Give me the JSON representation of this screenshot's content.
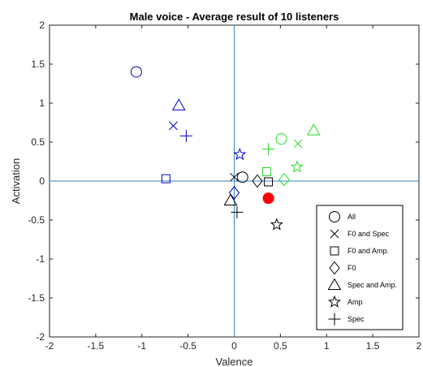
{
  "chart_data": {
    "type": "scatter",
    "title": "Male voice - Average result of 10 listeners",
    "xlabel": "Valence",
    "ylabel": "Activation",
    "xlim": [
      -2,
      2
    ],
    "ylim": [
      -2,
      2
    ],
    "xticks": [
      "-2",
      "-1.5",
      "-1",
      "-0.5",
      "0",
      "0.5",
      "1",
      "1.5",
      "2"
    ],
    "yticks": [
      "-2",
      "-1.5",
      "-1",
      "-0.5",
      "0",
      "0.5",
      "1",
      "1.5",
      "2"
    ],
    "grid": false,
    "reference_lines": {
      "x": 0,
      "y": 0,
      "color": "#3a87c0"
    },
    "legend_position": "bottom-right",
    "legend": [
      {
        "marker": "circle",
        "label": "All"
      },
      {
        "marker": "x",
        "label": "F0 and Spec"
      },
      {
        "marker": "square",
        "label": "F0 and Amp."
      },
      {
        "marker": "diamond",
        "label": "F0"
      },
      {
        "marker": "triangle",
        "label": "Spec and Amp."
      },
      {
        "marker": "star",
        "label": "Amp"
      },
      {
        "marker": "plus",
        "label": "Spec"
      }
    ],
    "series": [
      {
        "color": "#0000cc",
        "points": [
          {
            "marker": "circle",
            "x": -1.06,
            "y": 1.4
          },
          {
            "marker": "triangle",
            "x": -0.6,
            "y": 0.97
          },
          {
            "marker": "x",
            "x": -0.66,
            "y": 0.71
          },
          {
            "marker": "plus",
            "x": -0.52,
            "y": 0.58
          },
          {
            "marker": "star",
            "x": 0.06,
            "y": 0.34
          },
          {
            "marker": "square",
            "x": -0.74,
            "y": 0.03
          },
          {
            "marker": "diamond",
            "x": 0.0,
            "y": -0.15
          }
        ]
      },
      {
        "color": "#000000",
        "points": [
          {
            "marker": "x",
            "x": 0.0,
            "y": 0.05
          },
          {
            "marker": "circle",
            "x": 0.09,
            "y": 0.05
          },
          {
            "marker": "diamond",
            "x": 0.25,
            "y": 0.0
          },
          {
            "marker": "square",
            "x": 0.37,
            "y": -0.01
          },
          {
            "marker": "triangle",
            "x": -0.04,
            "y": -0.25
          },
          {
            "marker": "plus",
            "x": 0.03,
            "y": -0.4
          },
          {
            "marker": "star",
            "x": 0.46,
            "y": -0.56
          }
        ]
      },
      {
        "color": "#22dd22",
        "points": [
          {
            "marker": "circle",
            "x": 0.51,
            "y": 0.54
          },
          {
            "marker": "triangle",
            "x": 0.86,
            "y": 0.65
          },
          {
            "marker": "x",
            "x": 0.69,
            "y": 0.48
          },
          {
            "marker": "plus",
            "x": 0.37,
            "y": 0.41
          },
          {
            "marker": "star",
            "x": 0.68,
            "y": 0.18
          },
          {
            "marker": "square",
            "x": 0.35,
            "y": 0.12
          },
          {
            "marker": "diamond",
            "x": 0.54,
            "y": 0.02
          }
        ]
      },
      {
        "color": "#ff0000",
        "points": [
          {
            "marker": "filled-circle",
            "x": 0.37,
            "y": -0.22
          }
        ]
      }
    ]
  }
}
